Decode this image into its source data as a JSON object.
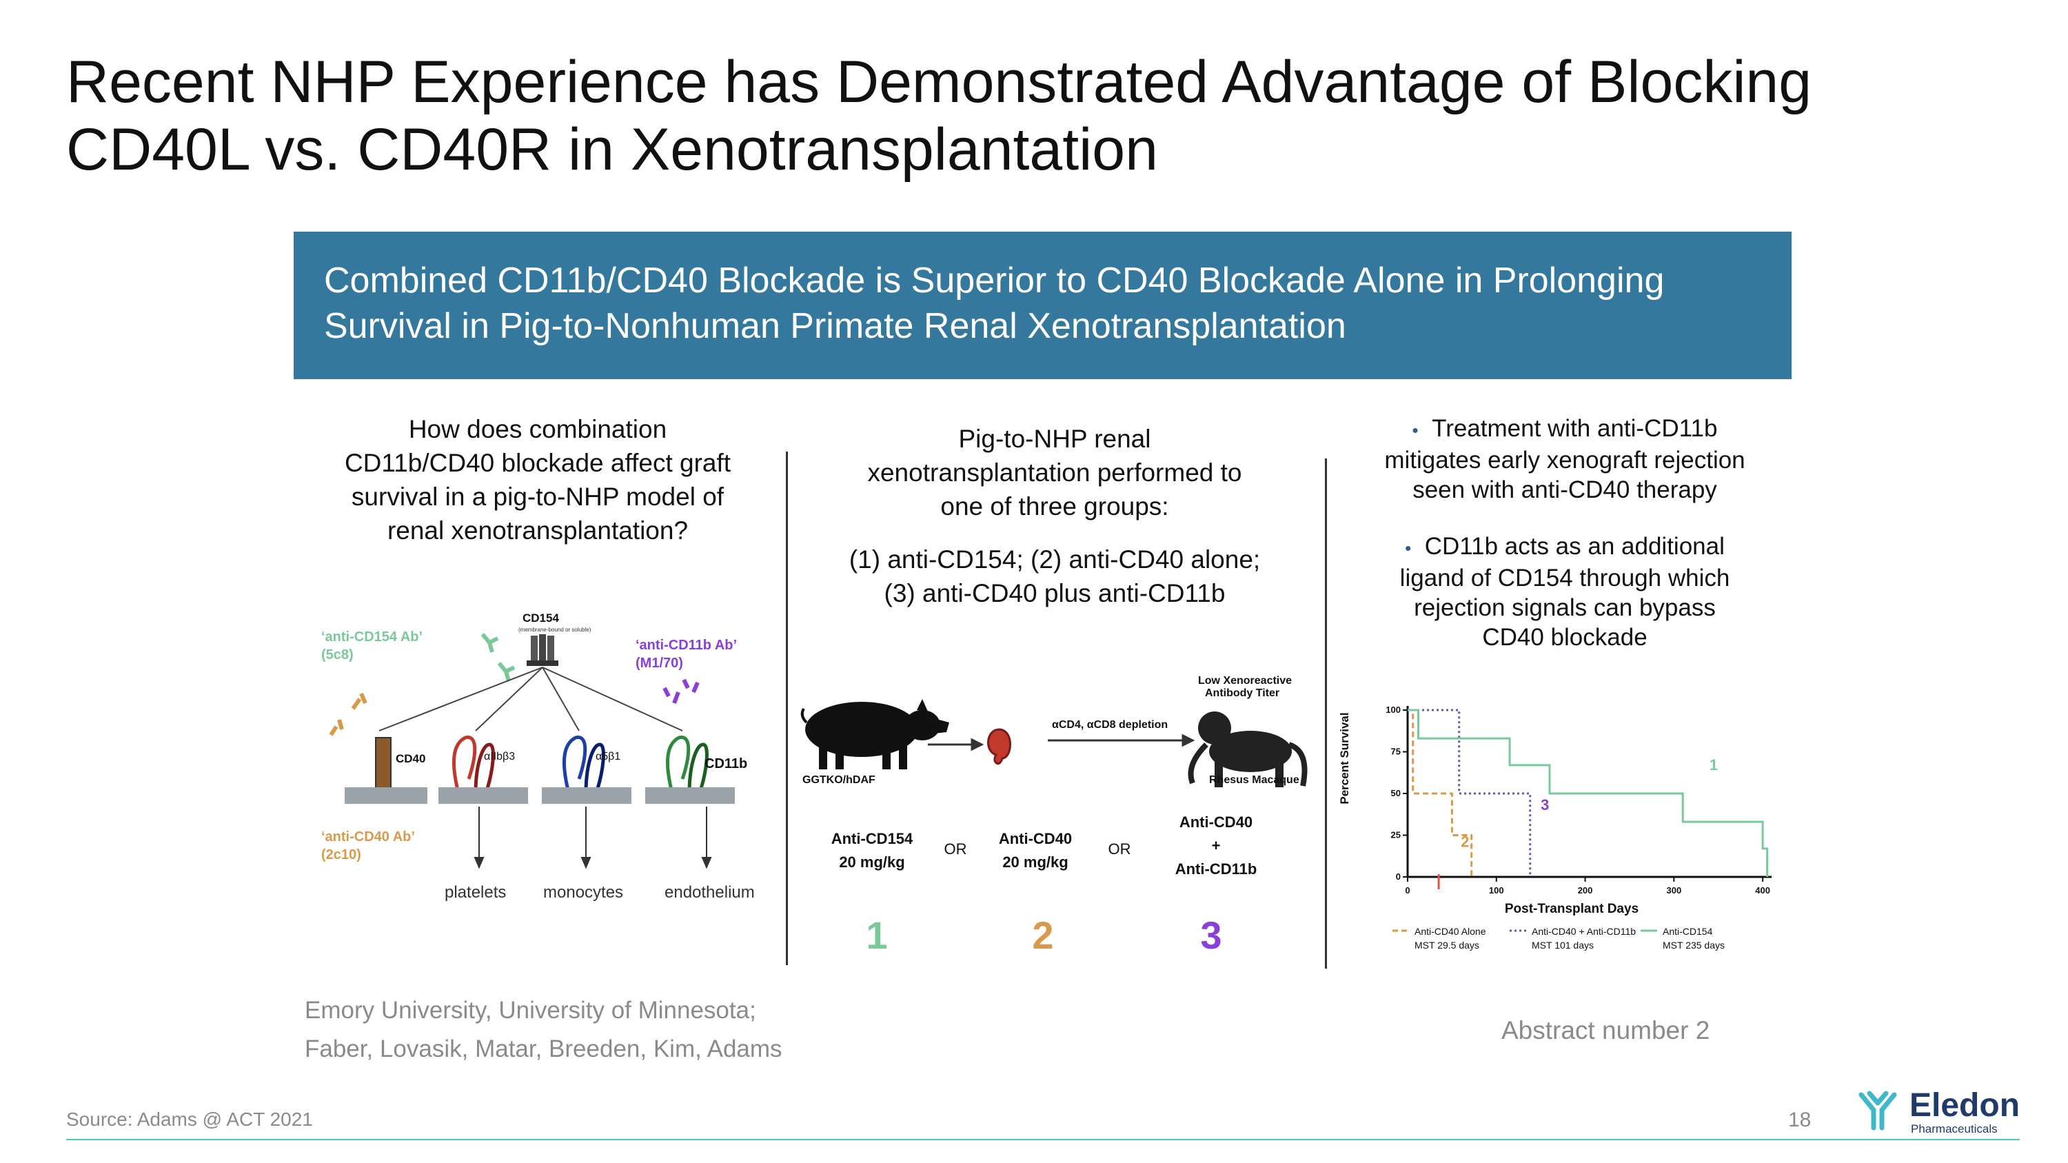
{
  "title": {
    "line1": "Recent NHP Experience has Demonstrated Advantage of Blocking",
    "line2": "CD40L vs. CD40R in Xenotransplantation"
  },
  "banner": {
    "line1": "Combined CD11b/CD40 Blockade is Superior to CD40 Blockade Alone in Prolonging",
    "line2": "Survival in Pig-to-Nonhuman Primate Renal Xenotransplantation"
  },
  "left_panel": {
    "question_lines": [
      "How does combination",
      "CD11b/CD40 blockade affect graft",
      "survival in a pig-to-NHP model of",
      "renal xenotransplantation?"
    ],
    "cd154_label": "CD154",
    "cd154_sub": "(membrane-bound or soluble)",
    "anti_cd154_line1": "‘anti-CD154 Ab’",
    "anti_cd154_line2": "(5c8)",
    "anti_cd11b_line1": "‘anti-CD11b Ab’",
    "anti_cd11b_line2": "(M1/70)",
    "cd40_label": "CD40",
    "aiib_label": "αIIbβ3",
    "a5b1_label": "α5β1",
    "cd11b_label": "CD11b",
    "anti_cd40_line1": "‘anti-CD40 Ab’",
    "anti_cd40_line2": "(2c10)",
    "targets": [
      "platelets",
      "monocytes",
      "endothelium"
    ]
  },
  "middle_panel": {
    "intro_lines": [
      "Pig-to-NHP renal",
      "xenotransplantation performed to",
      "one of three groups:"
    ],
    "groups_lines": [
      "(1) anti-CD154; (2) anti-CD40 alone;",
      "(3) anti-CD40 plus anti-CD11b"
    ],
    "pig_label": "GGTKO/hDAF",
    "depletion_label": "αCD4, αCD8 depletion",
    "titer_line1": "Low Xenoreactive",
    "titer_line2": "Antibody Titer",
    "macaque_label": "Rhesus Macaque",
    "group1_line1": "Anti-CD154",
    "group1_line2": "20 mg/kg",
    "or1": "OR",
    "group2_line1": "Anti-CD40",
    "group2_line2": "20 mg/kg",
    "or2": "OR",
    "group3_line1": "Anti-CD40",
    "group3_line2": "+",
    "group3_line3": "Anti-CD11b",
    "num1": "1",
    "num2": "2",
    "num3": "3",
    "num1_color": "#7ac99a",
    "num2_color": "#d89a4a",
    "num3_color": "#8b3fd9"
  },
  "right_panel": {
    "bullet_char": "•",
    "bullet1_lines": [
      "Treatment with anti-CD11b",
      "mitigates early xenograft rejection",
      "seen with anti-CD40 therapy"
    ],
    "bullet2_lines": [
      "CD11b acts as an additional",
      "ligand of CD154 through which",
      "rejection signals can bypass",
      "CD40 blockade"
    ]
  },
  "chart_data": {
    "type": "line",
    "subtype": "kaplan-meier",
    "title": "",
    "xlabel": "Post-Transplant Days",
    "ylabel": "Percent Survival",
    "xlim": [
      0,
      410
    ],
    "ylim": [
      0,
      100
    ],
    "xticks": [
      "0",
      "100",
      "200",
      "300",
      "400"
    ],
    "yticks": [
      "0",
      "25",
      "50",
      "75",
      "100"
    ],
    "series": [
      {
        "name": "Anti-CD40 Alone",
        "mst": "MST 29.5 days",
        "color": "#d89a4a",
        "style": "dashed",
        "marker_label": "2",
        "points": [
          [
            0,
            100
          ],
          [
            6,
            100
          ],
          [
            6,
            50
          ],
          [
            50,
            50
          ],
          [
            50,
            25
          ],
          [
            72,
            25
          ],
          [
            72,
            0
          ]
        ]
      },
      {
        "name": "Anti-CD40 + Anti-CD11b",
        "mst": "MST 101 days",
        "color": "#5b5fa8",
        "style": "dotted",
        "marker_label": "3",
        "points": [
          [
            0,
            100
          ],
          [
            58,
            100
          ],
          [
            58,
            50
          ],
          [
            138,
            50
          ],
          [
            138,
            0
          ]
        ]
      },
      {
        "name": "Anti-CD154",
        "mst": "MST 235 days",
        "color": "#7ac99a",
        "style": "solid",
        "marker_label": "1",
        "points": [
          [
            0,
            100
          ],
          [
            12,
            100
          ],
          [
            12,
            83
          ],
          [
            115,
            83
          ],
          [
            115,
            67
          ],
          [
            160,
            67
          ],
          [
            160,
            50
          ],
          [
            310,
            50
          ],
          [
            310,
            33
          ],
          [
            400,
            33
          ],
          [
            400,
            17
          ],
          [
            405,
            17
          ],
          [
            405,
            0
          ]
        ]
      }
    ],
    "label_colors": {
      "one": "#7ac99a",
      "two": "#d89a4a",
      "three": "#8b3fd9"
    }
  },
  "attribution": {
    "line1": "Emory University, University of Minnesota;",
    "line2": "Faber, Lovasik, Matar, Breeden, Kim, Adams",
    "abstract": "Abstract number 2"
  },
  "footer": {
    "source": "Source: Adams @ ACT 2021",
    "page_number": "18",
    "brand_name": "Eledon",
    "brand_sub": "Pharmaceuticals"
  },
  "colors": {
    "banner": "#34799d",
    "footer_line": "#57c2cf",
    "brand": "#1f3a6b",
    "brand_mark": "#3fb8c9"
  }
}
